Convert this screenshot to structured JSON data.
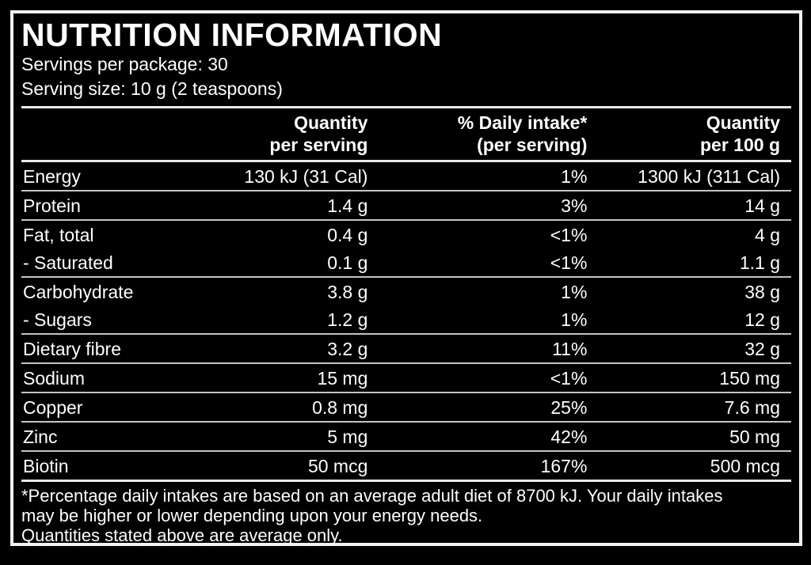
{
  "label": {
    "title": "NUTRITION INFORMATION",
    "servings_per_package": "Servings per package: 30",
    "serving_size": "Serving size: 10 g (2 teaspoons)"
  },
  "table": {
    "columns": [
      {
        "id": "nutrient",
        "line1": "",
        "line2": ""
      },
      {
        "id": "per_serving",
        "line1": "Quantity",
        "line2": "per serving"
      },
      {
        "id": "daily_intake",
        "line1": "% Daily intake*",
        "line2": "(per serving)"
      },
      {
        "id": "per_100g",
        "line1": "Quantity",
        "line2": "per 100 g"
      }
    ],
    "rows": [
      {
        "nutrient": "Energy",
        "per_serving": "130 kJ (31 Cal)",
        "daily_intake": "1%",
        "per_100g": "1300 kJ (311 Cal)",
        "sub": false
      },
      {
        "nutrient": "Protein",
        "per_serving": "1.4 g",
        "daily_intake": "3%",
        "per_100g": "14 g",
        "sub": false
      },
      {
        "nutrient": "Fat, total",
        "per_serving": "0.4 g",
        "daily_intake": "<1%",
        "per_100g": "4 g",
        "sub": false
      },
      {
        "nutrient": "- Saturated",
        "per_serving": "0.1 g",
        "daily_intake": "<1%",
        "per_100g": "1.1 g",
        "sub": true
      },
      {
        "nutrient": "Carbohydrate",
        "per_serving": "3.8 g",
        "daily_intake": "1%",
        "per_100g": "38 g",
        "sub": false
      },
      {
        "nutrient": "- Sugars",
        "per_serving": "1.2 g",
        "daily_intake": "1%",
        "per_100g": "12 g",
        "sub": true
      },
      {
        "nutrient": "Dietary fibre",
        "per_serving": "3.2 g",
        "daily_intake": "11%",
        "per_100g": "32 g",
        "sub": false
      },
      {
        "nutrient": "Sodium",
        "per_serving": "15 mg",
        "daily_intake": "<1%",
        "per_100g": "150 mg",
        "sub": false
      },
      {
        "nutrient": "Copper",
        "per_serving": "0.8 mg",
        "daily_intake": "25%",
        "per_100g": "7.6 mg",
        "sub": false
      },
      {
        "nutrient": "Zinc",
        "per_serving": "5 mg",
        "daily_intake": "42%",
        "per_100g": "50 mg",
        "sub": false
      },
      {
        "nutrient": "Biotin",
        "per_serving": "50 mcg",
        "daily_intake": "167%",
        "per_100g": "500 mcg",
        "sub": false
      }
    ]
  },
  "footnote": {
    "line1": "*Percentage daily intakes are based on an average adult diet of 8700 kJ. Your daily intakes may be higher or lower depending upon your energy needs.",
    "line2": "Quantities stated above are average only."
  },
  "colors": {
    "background": "#000000",
    "text": "#ffffff",
    "divider": "#c4c4c4",
    "rule": "#e9e9e9",
    "frame": "#f2f2f2"
  }
}
